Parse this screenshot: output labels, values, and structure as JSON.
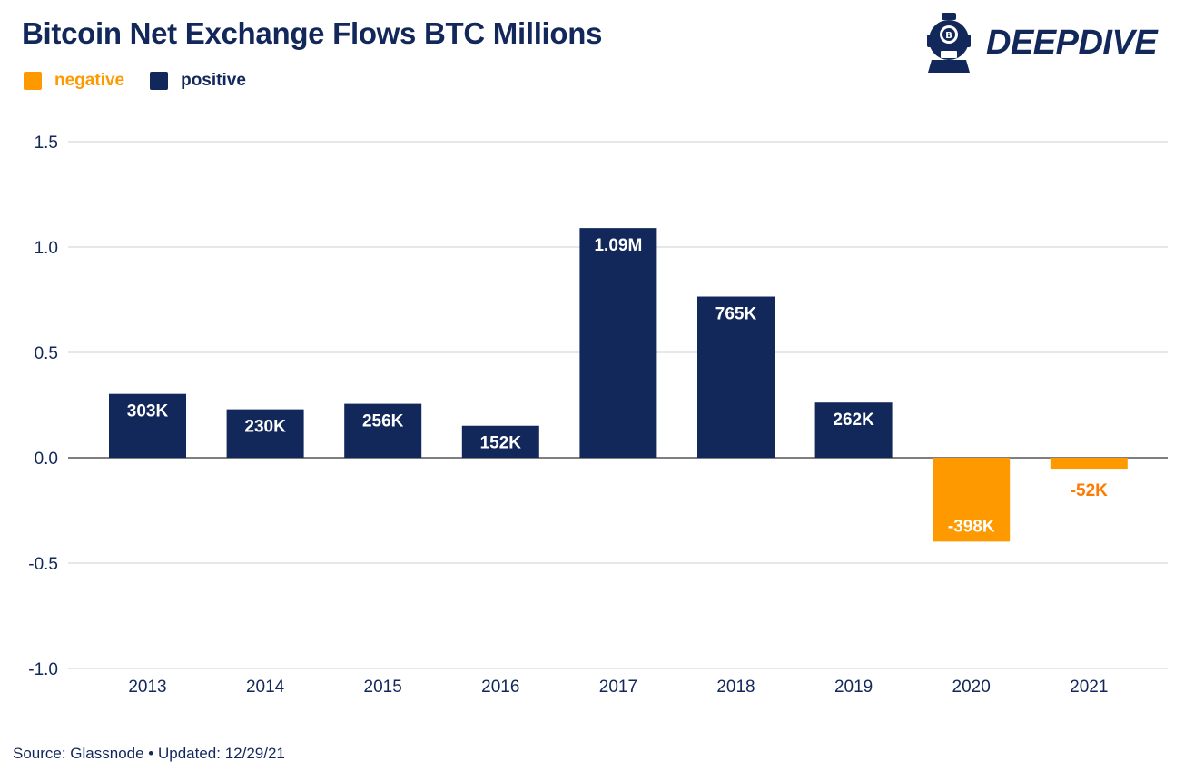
{
  "header": {
    "title": "Bitcoin Net Exchange Flows BTC Millions",
    "logo_text": "DEEPDIVE"
  },
  "legend": [
    {
      "label": "negative",
      "color": "#ff9900"
    },
    {
      "label": "positive",
      "color": "#13285a"
    }
  ],
  "footer": {
    "source": "Source: Glassnode • Updated: 12/29/21"
  },
  "colors": {
    "positive": "#13285a",
    "negative": "#ff9900",
    "negative_label": "#ff7a00",
    "axis_text": "#13285a",
    "grid": "#cfcfcf"
  },
  "chart_data": {
    "type": "bar",
    "title": "Bitcoin Net Exchange Flows BTC Millions",
    "xlabel": "",
    "ylabel": "",
    "categories": [
      "2013",
      "2014",
      "2015",
      "2016",
      "2017",
      "2018",
      "2019",
      "2020",
      "2021"
    ],
    "values": [
      0.303,
      0.23,
      0.256,
      0.152,
      1.09,
      0.765,
      0.262,
      -0.398,
      -0.052
    ],
    "data_labels": [
      "303K",
      "230K",
      "256K",
      "152K",
      "1.09M",
      "765K",
      "262K",
      "-398K",
      "-52K"
    ],
    "yticks": [
      "1.5",
      "1.0",
      "0.5",
      "0.0",
      "-0.5",
      "-1.0"
    ],
    "ylim": [
      -1.0,
      1.5
    ],
    "grid": true,
    "legend_position": "top-left"
  }
}
